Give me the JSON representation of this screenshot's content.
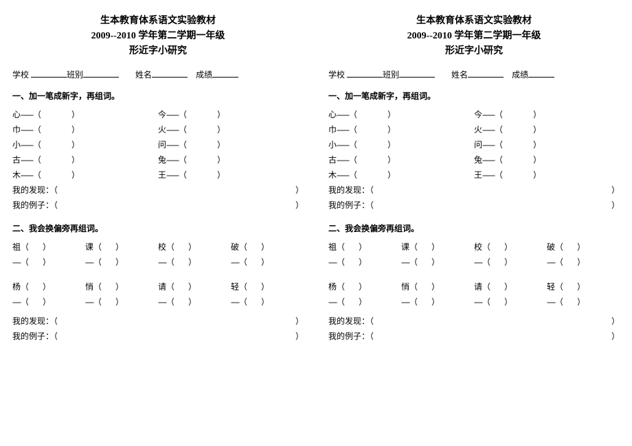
{
  "header": {
    "line1": "生本教育体系语文实验教材",
    "line2": "2009--2010 学年第二学期一年级",
    "line3": "形近字小研究"
  },
  "info": {
    "school_label": "学校",
    "class_label": "班别",
    "name_label": "姓名",
    "score_label": "成绩"
  },
  "section1": {
    "title": "一、加一笔成新字，再组词。",
    "left_chars": [
      "心",
      "巾",
      "小",
      "古",
      "木"
    ],
    "right_chars": [
      "今",
      "火",
      "问",
      "兔",
      "王"
    ],
    "dash_segment": "------",
    "discovery_label": "我的发现：（",
    "example_label": "我的例子：（",
    "close_paren": "）"
  },
  "section2": {
    "title": "二、我会换偏旁再组词。",
    "row1": [
      "祖",
      "课",
      "校",
      "破"
    ],
    "row2": [
      "杨",
      "悄",
      "请",
      "轻"
    ],
    "blank_dash": "----",
    "discovery_label": "我的发现：（",
    "example_label": "我的例子：（",
    "close_paren": "）"
  }
}
